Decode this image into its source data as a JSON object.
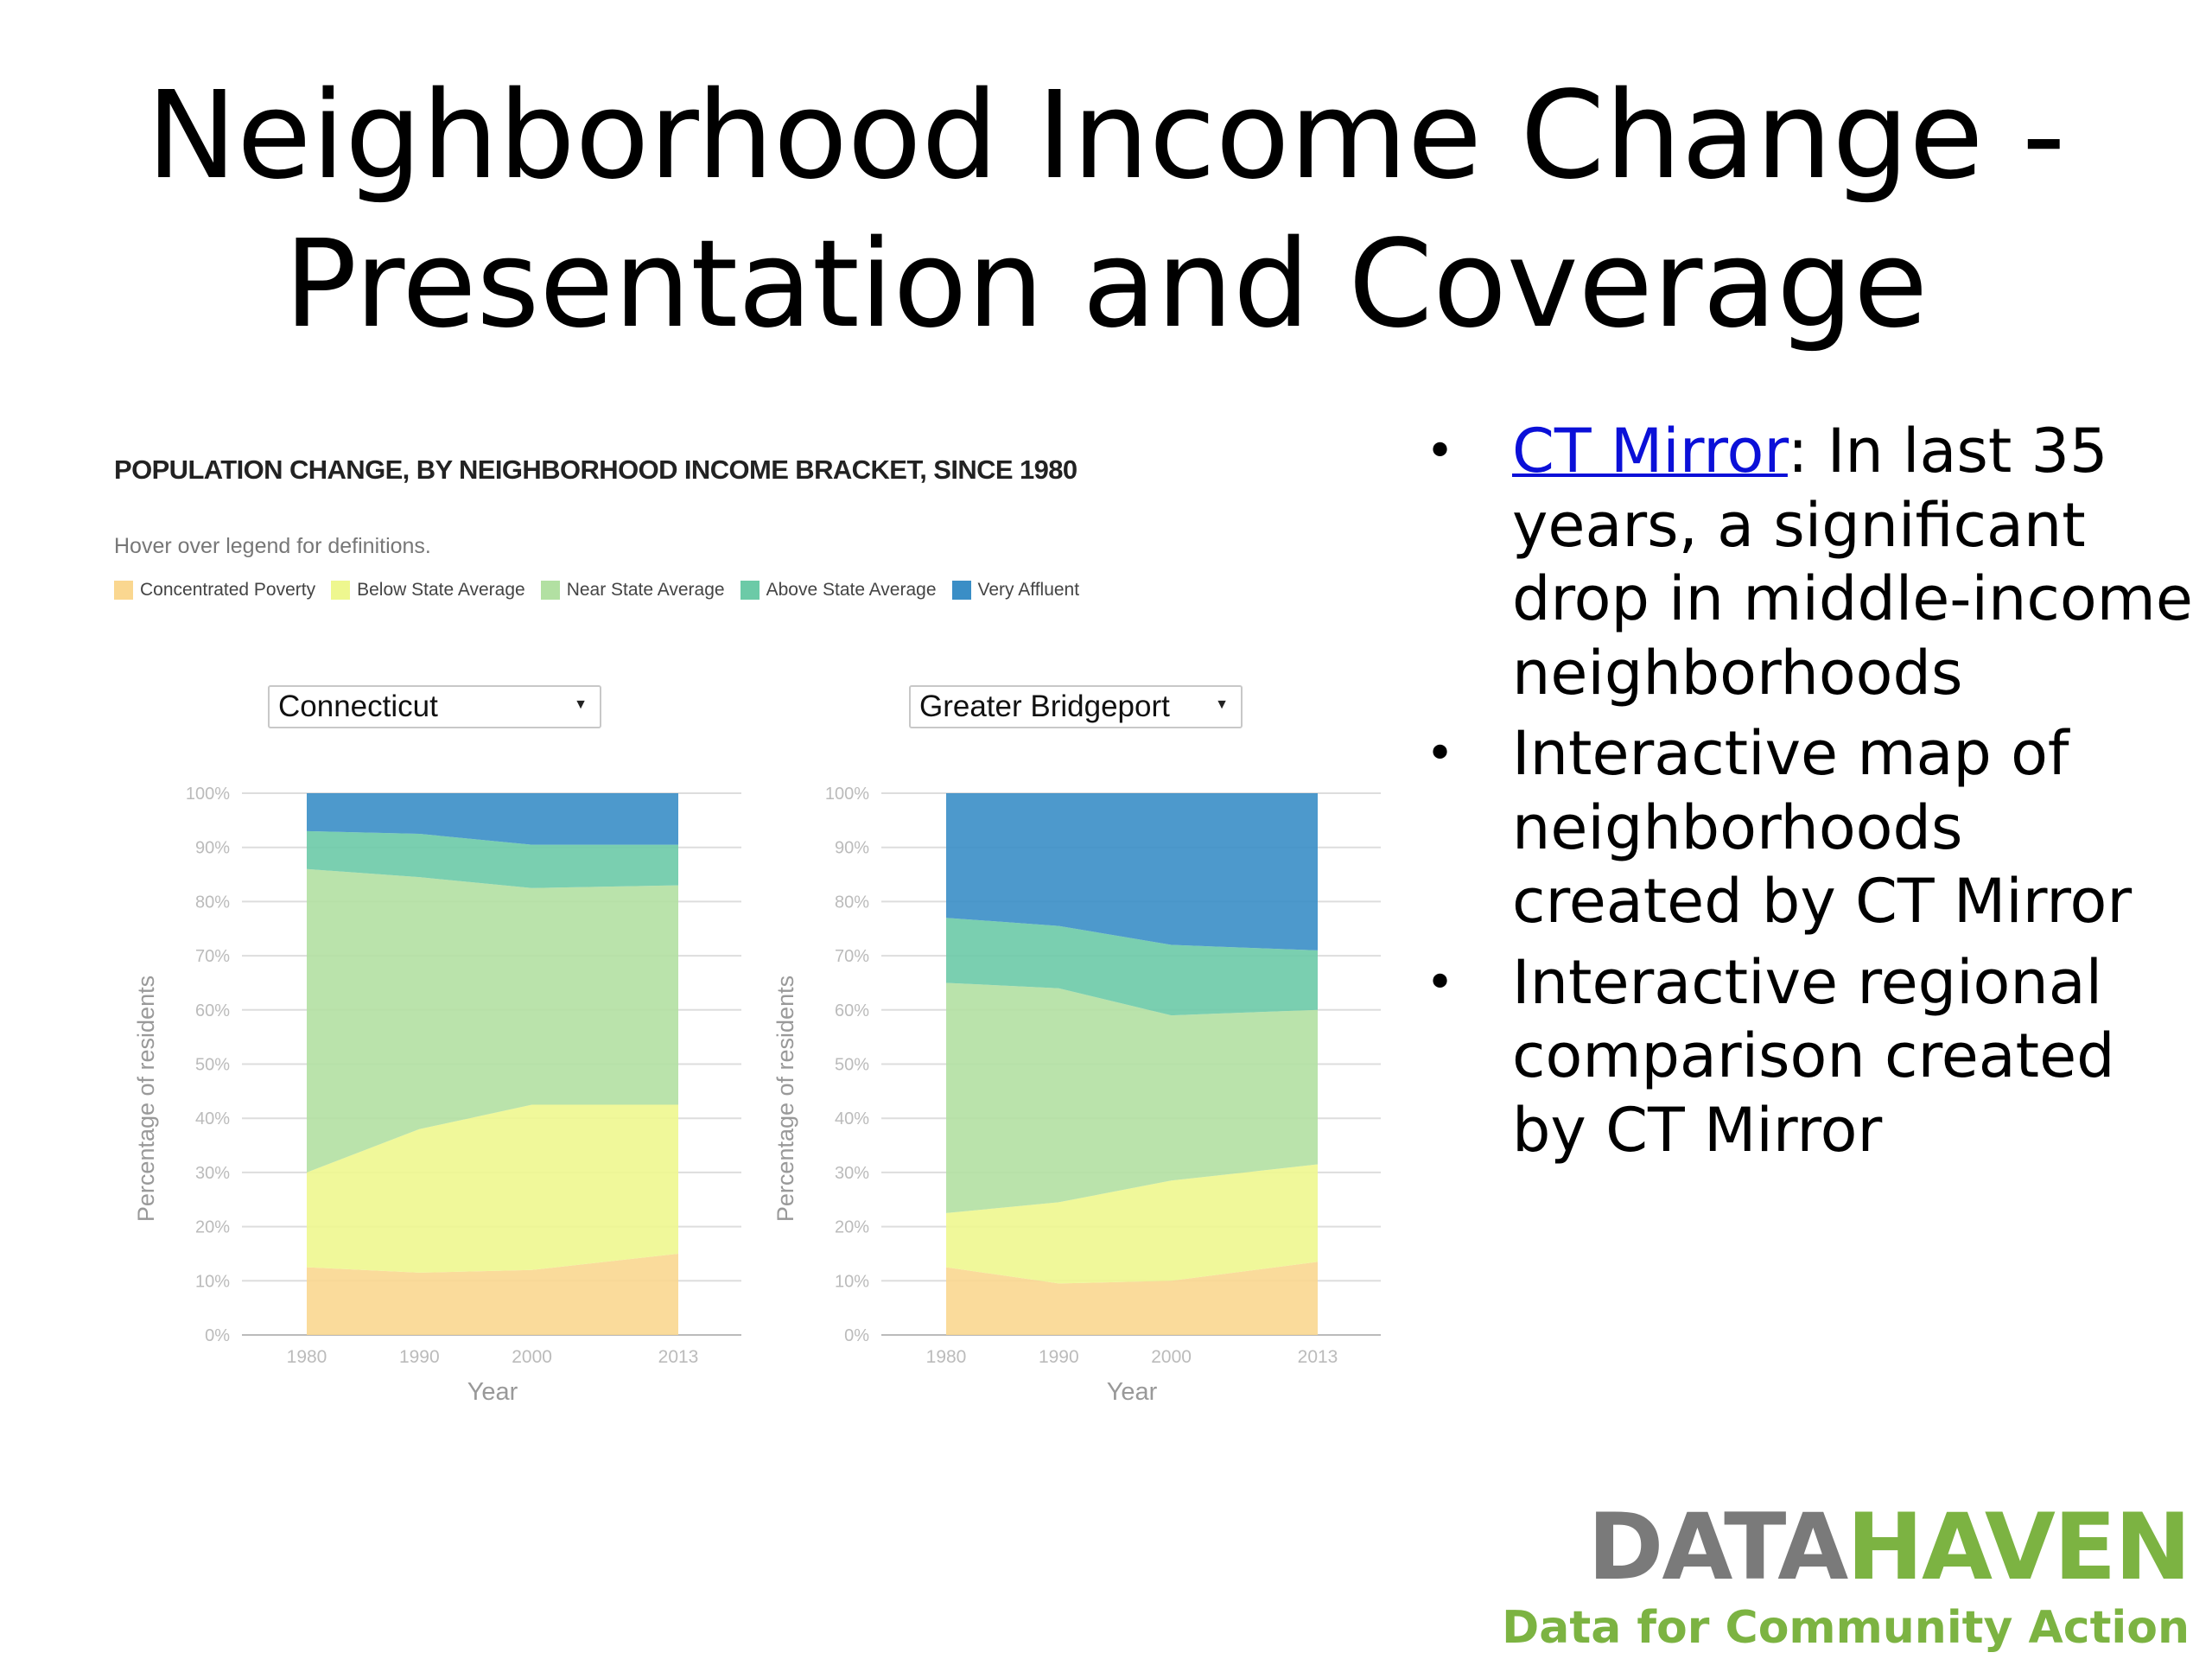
{
  "slide": {
    "title_lines": [
      "Neighborhood Income Change -",
      "Presentation and Coverage"
    ]
  },
  "figure": {
    "heading": "POPULATION CHANGE, BY NEIGHBORHOOD INCOME BRACKET, SINCE 1980",
    "hover_note": "Hover over legend for definitions.",
    "legend": [
      {
        "label": "Concentrated Poverty",
        "color": "#fad790"
      },
      {
        "label": "Below State Average",
        "color": "#eef78f"
      },
      {
        "label": "Near State Average",
        "color": "#b2e0a2"
      },
      {
        "label": "Above State Average",
        "color": "#6ccaa7"
      },
      {
        "label": "Very Affluent",
        "color": "#3a8ec6"
      }
    ],
    "dropdowns": {
      "left": "Connecticut",
      "right": "Greater Bridgeport"
    }
  },
  "chart_data": [
    {
      "type": "area",
      "stacked": true,
      "region": "Connecticut",
      "x": [
        1980,
        1990,
        2000,
        2013
      ],
      "xlabel": "Year",
      "ylabel": "Percentage of residents",
      "ylim": [
        0,
        100
      ],
      "yticks": [
        "0%",
        "10%",
        "20%",
        "30%",
        "40%",
        "50%",
        "60%",
        "70%",
        "80%",
        "90%",
        "100%"
      ],
      "xticks": [
        "1980",
        "1990",
        "2000",
        "2013"
      ],
      "grid": true,
      "series": [
        {
          "name": "Concentrated Poverty",
          "values": [
            12.5,
            11.5,
            12.0,
            15.0
          ]
        },
        {
          "name": "Below State Average",
          "values": [
            17.5,
            26.5,
            30.5,
            27.5
          ]
        },
        {
          "name": "Near State Average",
          "values": [
            56.0,
            46.5,
            40.0,
            40.5
          ]
        },
        {
          "name": "Above State Average",
          "values": [
            7.0,
            8.0,
            8.0,
            7.5
          ]
        },
        {
          "name": "Very Affluent",
          "values": [
            7.0,
            7.5,
            9.5,
            9.5
          ]
        }
      ]
    },
    {
      "type": "area",
      "stacked": true,
      "region": "Greater Bridgeport",
      "x": [
        1980,
        1990,
        2000,
        2013
      ],
      "xlabel": "Year",
      "ylabel": "Percentage of residents",
      "ylim": [
        0,
        100
      ],
      "yticks": [
        "0%",
        "10%",
        "20%",
        "30%",
        "40%",
        "50%",
        "60%",
        "70%",
        "80%",
        "90%",
        "100%"
      ],
      "xticks": [
        "1980",
        "1990",
        "2000",
        "2013"
      ],
      "grid": true,
      "series": [
        {
          "name": "Concentrated Poverty",
          "values": [
            12.5,
            9.5,
            10.0,
            13.5
          ]
        },
        {
          "name": "Below State Average",
          "values": [
            10.0,
            15.0,
            18.5,
            18.0
          ]
        },
        {
          "name": "Near State Average",
          "values": [
            42.5,
            39.5,
            30.5,
            28.5
          ]
        },
        {
          "name": "Above State Average",
          "values": [
            12.0,
            11.5,
            13.0,
            11.0
          ]
        },
        {
          "name": "Very Affluent",
          "values": [
            23.0,
            24.5,
            28.0,
            29.0
          ]
        }
      ]
    }
  ],
  "bullets": [
    {
      "link": "CT Mirror",
      "text": ": In last 35 years, a significant drop in middle-income neighborhoods"
    },
    {
      "link": "",
      "text": "Interactive map of neighborhoods created by CT Mirror"
    },
    {
      "link": "",
      "text": "Interactive regional comparison created by CT Mirror"
    }
  ],
  "logo": {
    "part1": "DATA",
    "part2": "HAVEN",
    "tagline": "Data for Community Action"
  }
}
